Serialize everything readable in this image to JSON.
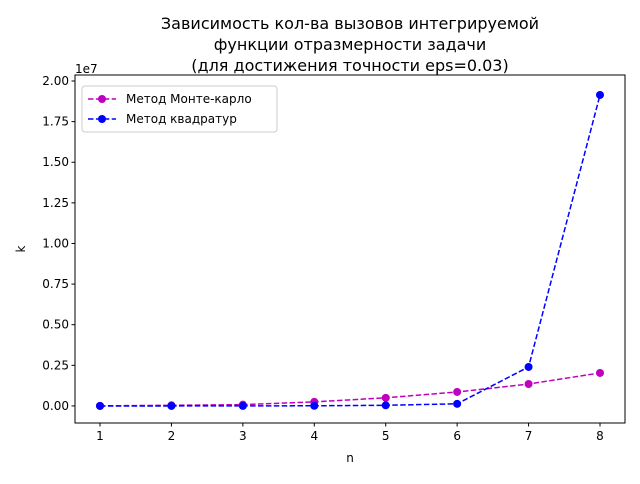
{
  "chart_data": {
    "type": "line",
    "title": [
      "Зависимость кол-ва вызовов интегрируемой",
      "функции отразмерности задачи",
      "(для достижения точности eps=0.03)"
    ],
    "x_label": "n",
    "y_label": "k",
    "y_offset_label": "1e7",
    "x": [
      1,
      2,
      3,
      4,
      5,
      6,
      7,
      8
    ],
    "series": [
      {
        "name": "Метод Монте-карло",
        "color": "#bf00bf",
        "values": [
          0.0005,
          0.004,
          0.008,
          0.025,
          0.05,
          0.086,
          0.135,
          0.203
        ]
      },
      {
        "name": "Метод квадратур",
        "color": "#0000ff",
        "values": [
          0.0,
          0.0,
          0.0003,
          0.001,
          0.004,
          0.013,
          0.24,
          1.914
        ]
      }
    ],
    "xlim": [
      0.65,
      8.35
    ],
    "ylim": [
      -0.105,
      2.037
    ],
    "xticks": [
      1,
      2,
      3,
      4,
      5,
      6,
      7,
      8
    ],
    "yticks": [
      {
        "value": 0,
        "label": "0.00"
      },
      0.25,
      {
        "value": 0.5,
        "label": "0.50"
      },
      0.75,
      {
        "value": 1,
        "label": "1.00"
      },
      1.25,
      {
        "value": 1.5,
        "label": "1.50"
      },
      1.75,
      {
        "value": 2,
        "label": "2.00"
      }
    ],
    "legend": "upper left",
    "grid": false
  }
}
